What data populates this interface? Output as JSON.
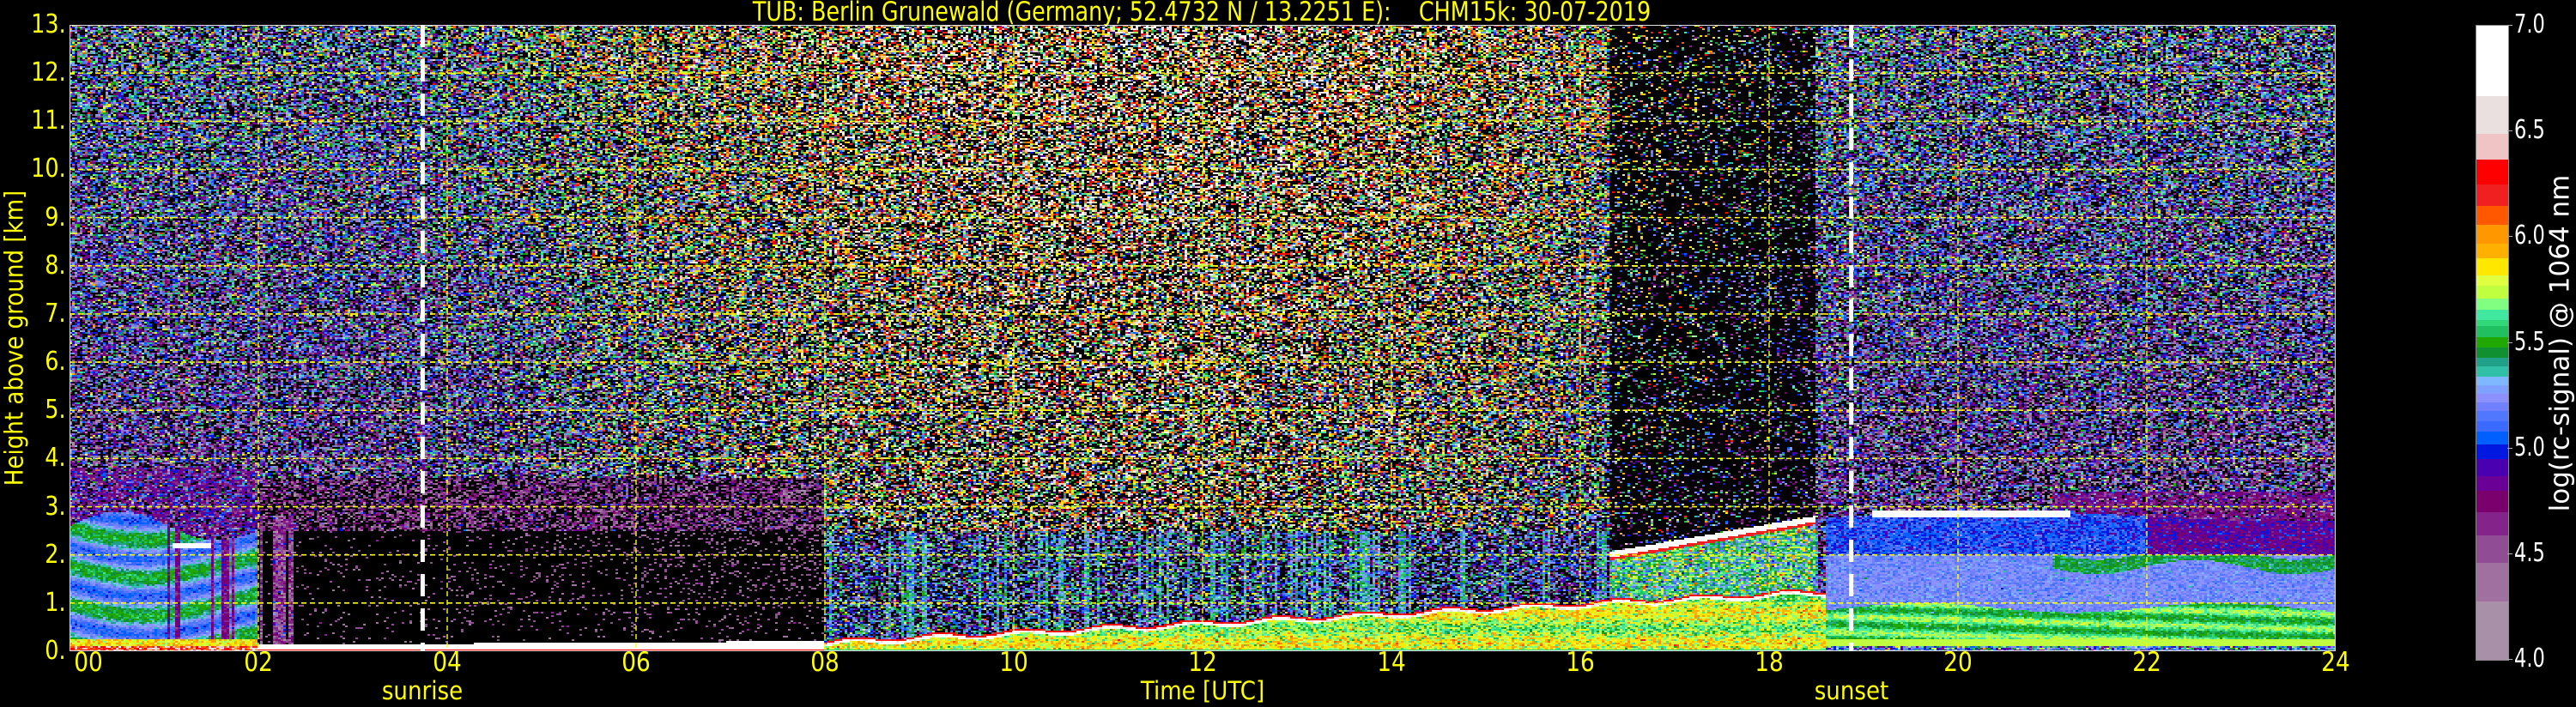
{
  "title": "TUB: Berlin Grunewald (Germany; 52.4732 N / 13.2251 E):    CHM15k: 30-07-2019",
  "chart_data": {
    "type": "heatmap",
    "title": "TUB: Berlin Grunewald (Germany; 52.4732 N / 13.2251 E):    CHM15k: 30-07-2019",
    "xlabel": "Time [UTC]",
    "ylabel": "Height above ground [km]",
    "xlim": [
      0,
      24
    ],
    "ylim": [
      0,
      13
    ],
    "xticks": [
      "00",
      "02",
      "04",
      "06",
      "08",
      "10",
      "12",
      "14",
      "16",
      "18",
      "20",
      "22",
      "24"
    ],
    "yticks": [
      "0.",
      "1.",
      "2.",
      "3.",
      "4.",
      "5.",
      "6.",
      "7.",
      "8.",
      "9.",
      "10.",
      "11.",
      "12.",
      "13."
    ],
    "grid": true,
    "grid_color": "#ffff00",
    "annotations": [
      {
        "label": "sunrise",
        "x": 3.74,
        "style": "white dashed vertical line"
      },
      {
        "label": "sunset",
        "x": 18.87,
        "style": "white dashed vertical line"
      }
    ],
    "colorbar": {
      "label": "log(rc-signal) @ 1064 nm",
      "range": [
        4.0,
        7.0
      ],
      "ticks": [
        "4.0",
        "4.5",
        "5.0",
        "5.5",
        "6.0",
        "6.5",
        "7.0"
      ],
      "below_range_color": "#000000",
      "levels": [
        [
          4.0,
          "#a890a8"
        ],
        [
          4.28,
          "#a070a0"
        ],
        [
          4.46,
          "#904d94"
        ],
        [
          4.59,
          "#84248a"
        ],
        [
          4.7,
          "#7a006e"
        ],
        [
          4.8,
          "#6a0096"
        ],
        [
          4.87,
          "#4a00b0"
        ],
        [
          4.95,
          "#0018e0"
        ],
        [
          5.02,
          "#0060ff"
        ],
        [
          5.08,
          "#3a6aff"
        ],
        [
          5.13,
          "#5078ff"
        ],
        [
          5.18,
          "#7080ff"
        ],
        [
          5.22,
          "#8c90ff"
        ],
        [
          5.26,
          "#80a0ff"
        ],
        [
          5.3,
          "#80b8ff"
        ],
        [
          5.34,
          "#30c0a8"
        ],
        [
          5.39,
          "#20a088"
        ],
        [
          5.43,
          "#109030"
        ],
        [
          5.48,
          "#20a800"
        ],
        [
          5.53,
          "#20c060"
        ],
        [
          5.58,
          "#30d878"
        ],
        [
          5.61,
          "#40e8a0"
        ],
        [
          5.66,
          "#80ff80"
        ],
        [
          5.71,
          "#c0ff40"
        ],
        [
          5.77,
          "#e0ff40"
        ],
        [
          5.82,
          "#ffe800"
        ],
        [
          5.9,
          "#ffb000"
        ],
        [
          5.97,
          "#ff9800"
        ],
        [
          6.06,
          "#ff5800"
        ],
        [
          6.15,
          "#f02020"
        ],
        [
          6.25,
          "#ff0000"
        ],
        [
          6.37,
          "#f0c4c4"
        ],
        [
          6.49,
          "#ebe0e0"
        ],
        [
          6.67,
          "#ffffff"
        ]
      ]
    }
  }
}
